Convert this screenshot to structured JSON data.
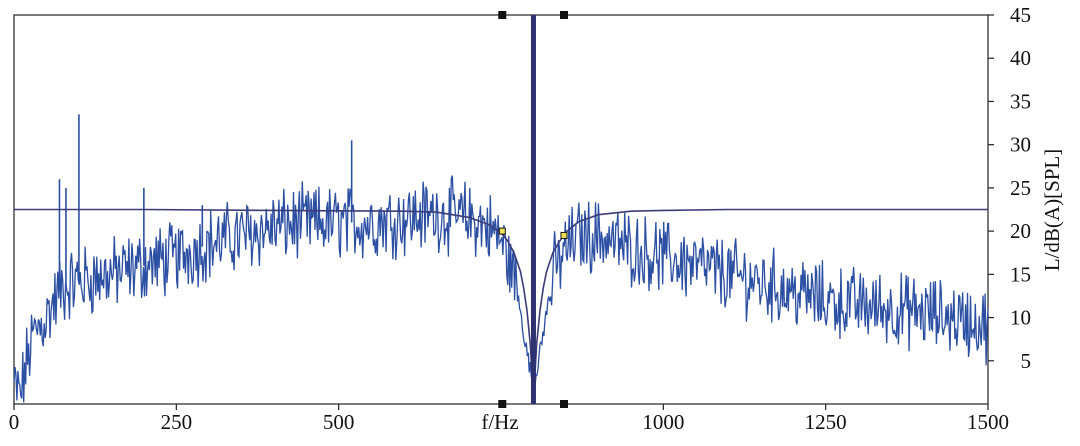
{
  "chart_data": {
    "type": "line",
    "xlabel": "f/Hz",
    "ylabel": "L/dB(A)[SPL]",
    "xlim": [
      0,
      1500
    ],
    "ylim": [
      0,
      45
    ],
    "x_ticks": [
      0,
      250,
      500,
      1000,
      1250,
      1500
    ],
    "x_tick_labels": [
      "0",
      "250",
      "500",
      "1000",
      "1250",
      "1500"
    ],
    "y_ticks": [
      5,
      10,
      15,
      20,
      25,
      30,
      35,
      40,
      45
    ],
    "y_tick_labels": [
      "5",
      "10",
      "15",
      "20",
      "25",
      "30",
      "35",
      "40",
      "45"
    ],
    "grid": false,
    "colors": {
      "spectrum": "#2b4fa3",
      "filter": "#3b3b7a",
      "tone": "#2e3270",
      "marker": "#111111",
      "marker_highlight": "#f2e25c"
    },
    "tone_frequency_hz": 800,
    "marker_frequencies_hz": [
      752,
      847
    ],
    "marker_levels_db": [
      20,
      19.5
    ],
    "series": [
      {
        "role": "filter-curve",
        "style": "solid",
        "x": [
          0,
          200,
          400,
          600,
          650,
          700,
          730,
          750,
          760,
          770,
          780,
          785,
          790,
          795,
          800,
          805,
          810,
          815,
          820,
          830,
          840,
          850,
          870,
          900,
          950,
          1000,
          1100,
          1200,
          1210,
          1300,
          1400,
          1500
        ],
        "y": [
          22.5,
          22.5,
          22.4,
          22.3,
          22.2,
          21.6,
          20.8,
          19.8,
          18.9,
          17.5,
          15.3,
          13.4,
          10.8,
          7.0,
          0.5,
          7.0,
          10.8,
          13.4,
          15.3,
          17.5,
          18.8,
          19.9,
          21.1,
          21.9,
          22.3,
          22.4,
          22.5,
          22.5,
          22.5,
          22.5,
          22.5,
          22.5
        ]
      },
      {
        "role": "spectrum-envelope",
        "style": "solid",
        "x": [
          0,
          10,
          20,
          30,
          50,
          70,
          90,
          120,
          150,
          200,
          250,
          300,
          350,
          400,
          450,
          500,
          550,
          600,
          650,
          700,
          730,
          750,
          770,
          790,
          800,
          810,
          830,
          850,
          870,
          900,
          950,
          1000,
          1050,
          1100,
          1150,
          1200,
          1250,
          1300,
          1350,
          1400,
          1450,
          1500
        ],
        "y": [
          2,
          1,
          5,
          8,
          10,
          13,
          14,
          14.5,
          15,
          16,
          17,
          18.5,
          19.5,
          20.5,
          21,
          21,
          21,
          21.5,
          22,
          21.5,
          20.5,
          19,
          15,
          6,
          2,
          6,
          15,
          18,
          19.5,
          19.5,
          18,
          17,
          16,
          15,
          14,
          13,
          12,
          11.5,
          11,
          10.5,
          10,
          9
        ]
      },
      {
        "role": "spectrum-peaks",
        "style": "solid",
        "x": [
          70,
          80,
          100,
          200,
          290,
          520
        ],
        "y": [
          26,
          25,
          33.5,
          25,
          23,
          30.5
        ]
      }
    ]
  }
}
